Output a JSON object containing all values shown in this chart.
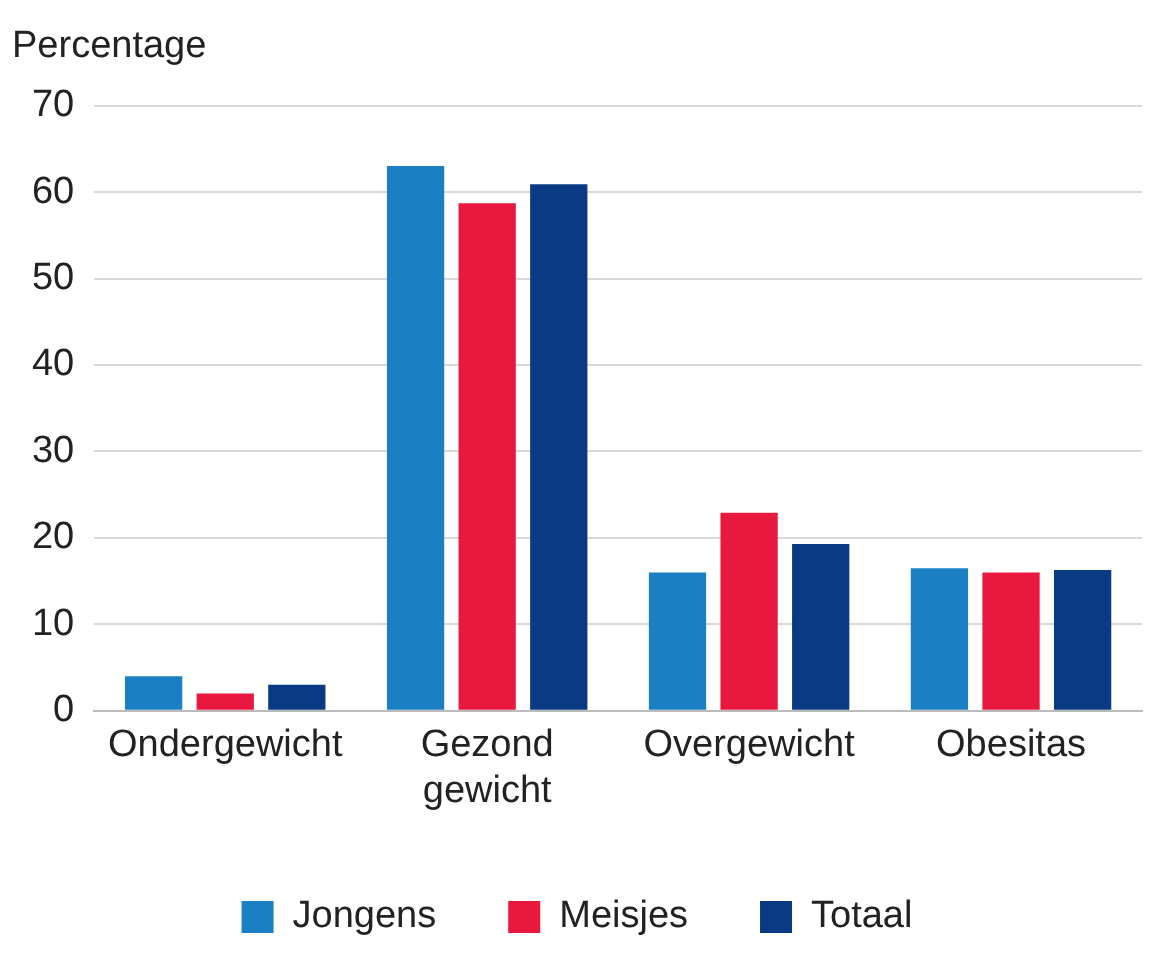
{
  "chart_data": {
    "type": "bar",
    "ylabel": "Percentage",
    "categories": [
      "Ondergewicht",
      "Gezond gewicht",
      "Overgewicht",
      "Obesitas"
    ],
    "series": [
      {
        "name": "Jongens",
        "color": "#1b7fc4",
        "values": [
          4,
          63,
          16,
          16.5
        ]
      },
      {
        "name": "Meisjes",
        "color": "#e8183f",
        "values": [
          2,
          58.7,
          22.9,
          16
        ]
      },
      {
        "name": "Totaal",
        "color": "#0a3a84",
        "values": [
          3,
          60.9,
          19.3,
          16.3
        ]
      }
    ],
    "ylim": [
      0,
      70
    ],
    "yticks": [
      0,
      10,
      20,
      30,
      40,
      50,
      60,
      70
    ],
    "grid": "y",
    "legend": "bottom"
  }
}
